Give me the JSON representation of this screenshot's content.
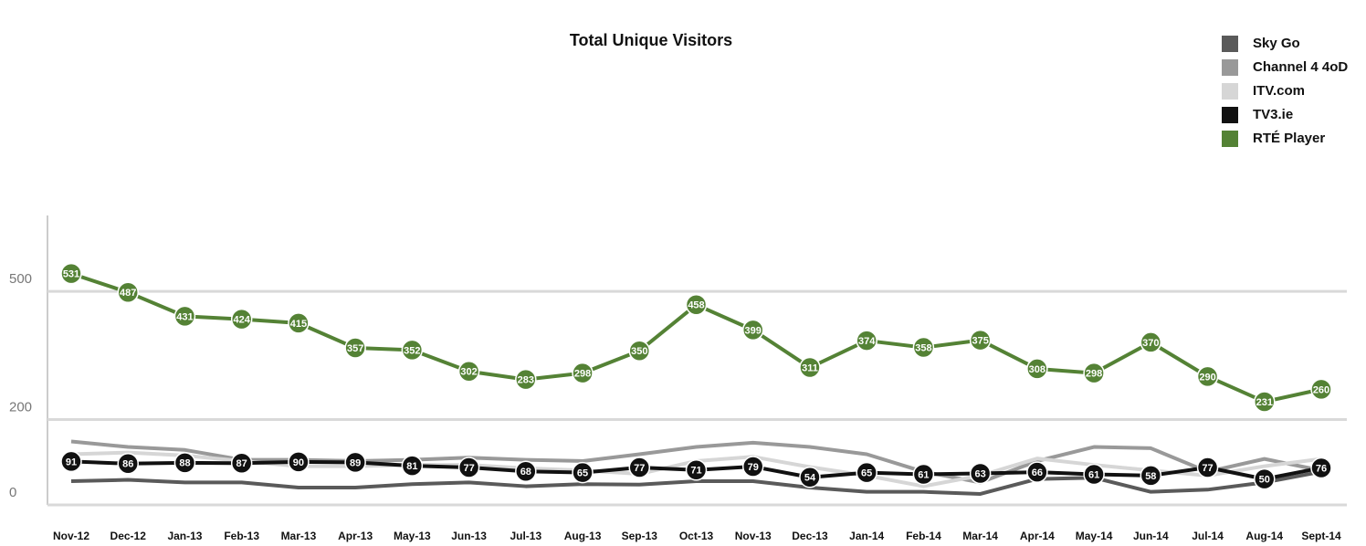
{
  "chart_data": {
    "type": "line",
    "title": "Total Unique Visitors",
    "categories": [
      "Nov-12",
      "Dec-12",
      "Jan-13",
      "Feb-13",
      "Mar-13",
      "Apr-13",
      "May-13",
      "Jun-13",
      "Jul-13",
      "Aug-13",
      "Sep-13",
      "Oct-13",
      "Nov-13",
      "Dec-13",
      "Jan-14",
      "Feb-14",
      "Mar-14",
      "Apr-14",
      "May-14",
      "Jun-14",
      "Jul-14",
      "Aug-14",
      "Sept-14"
    ],
    "series": [
      {
        "name": "Sky Go",
        "color": "#5a5a5a",
        "values": [
          45,
          48,
          42,
          42,
          30,
          30,
          38,
          42,
          33,
          38,
          37,
          45,
          45,
          30,
          20,
          20,
          15,
          50,
          53,
          20,
          25,
          42,
          67
        ]
      },
      {
        "name": "Channel 4 4oD",
        "color": "#999999",
        "values": [
          138,
          125,
          118,
          95,
          95,
          92,
          95,
          100,
          95,
          92,
          108,
          125,
          135,
          125,
          108,
          67,
          42,
          92,
          125,
          122,
          67,
          97,
          70
        ]
      },
      {
        "name": "ITV.com",
        "color": "#d6d6d6",
        "values": [
          108,
          112,
          105,
          92,
          80,
          80,
          83,
          83,
          75,
          70,
          62,
          92,
          102,
          78,
          58,
          33,
          58,
          98,
          83,
          70,
          58,
          80,
          97
        ]
      },
      {
        "name": "TV3.ie",
        "color": "#111111",
        "values": [
          91,
          86,
          88,
          87,
          90,
          89,
          81,
          77,
          68,
          65,
          77,
          71,
          79,
          54,
          65,
          61,
          63,
          66,
          61,
          58,
          77,
          50,
          76
        ],
        "labels": true
      },
      {
        "name": "RTÉ Player",
        "color": "#548235",
        "values": [
          531,
          487,
          431,
          424,
          415,
          357,
          352,
          302,
          283,
          298,
          350,
          458,
          399,
          311,
          374,
          358,
          375,
          308,
          298,
          370,
          290,
          231,
          260
        ],
        "labels": true
      }
    ],
    "ylim": [
      0,
      620
    ],
    "yticks": [
      0,
      200,
      500
    ],
    "grid": true,
    "legend": "top-right"
  }
}
